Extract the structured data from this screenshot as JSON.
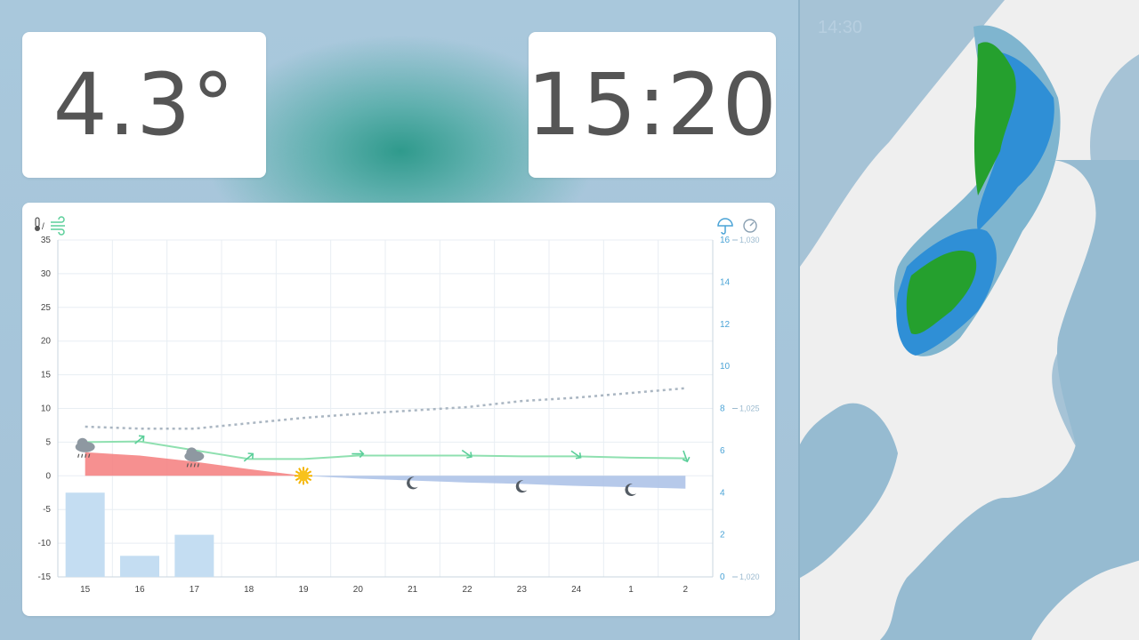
{
  "temperature": {
    "value": "4.3°"
  },
  "clock": {
    "time": "15:20"
  },
  "chart_header": {
    "left_icons": [
      "thermometer-icon",
      "wind-icon"
    ],
    "left_separator": "/",
    "right_icons": [
      "umbrella-icon",
      "pressure-gauge-icon"
    ]
  },
  "chart_data": {
    "type": "line",
    "categories": [
      "15",
      "16",
      "17",
      "18",
      "19",
      "20",
      "21",
      "22",
      "23",
      "24",
      "1",
      "2"
    ],
    "y_left": {
      "ticks": [
        "35",
        "30",
        "25",
        "20",
        "15",
        "10",
        "5",
        "0",
        "-5",
        "-10",
        "-15"
      ],
      "ylim": [
        -15,
        35
      ]
    },
    "y_right_precip": {
      "ticks": [
        "16",
        "14",
        "12",
        "10",
        "8",
        "6",
        "4",
        "2",
        "0"
      ],
      "ylim": [
        0,
        16
      ]
    },
    "y_right_pressure": {
      "ticks": [
        "1,030",
        "1,025",
        "1,020"
      ]
    },
    "series": [
      {
        "values": [
          3.5,
          3.0,
          2.1,
          1.0,
          0.0,
          -0.4,
          -0.7,
          -1.0,
          -1.2,
          -1.5,
          -1.7,
          -1.9
        ],
        "color_pos": "#f47c7c",
        "color_neg": "#a9c0e6"
      },
      {
        "values": [
          5.0,
          5.1,
          3.8,
          2.5,
          2.5,
          3.0,
          3.0,
          3.0,
          2.9,
          2.9,
          2.7,
          2.6
        ],
        "color": "#8fe0b0"
      },
      {
        "values": [
          7.3,
          7.0,
          7.0,
          7.8,
          8.6,
          9.2,
          9.7,
          10.2,
          11.1,
          11.6,
          12.3,
          13.0
        ],
        "color": "#aab6c2",
        "dashed": true
      }
    ],
    "precip": [
      4,
      1,
      2,
      0,
      0,
      0,
      0,
      0,
      0,
      0,
      0,
      0
    ],
    "precip_color": "#c4ddf2",
    "weather_icons": [
      "rain-cloud-icon",
      "",
      "rain-cloud-icon",
      "",
      "sun-icon",
      "",
      "moon-icon",
      "",
      "moon-icon",
      "",
      "moon-icon",
      ""
    ],
    "wind_arrows": [
      "",
      "arrow-ne-icon",
      "",
      "arrow-ne-icon",
      "",
      "arrow-e-icon",
      "",
      "arrow-se-icon",
      "",
      "arrow-se-icon",
      "",
      "arrow-s-icon"
    ],
    "grid": true
  },
  "map": {
    "time": "14:30"
  }
}
